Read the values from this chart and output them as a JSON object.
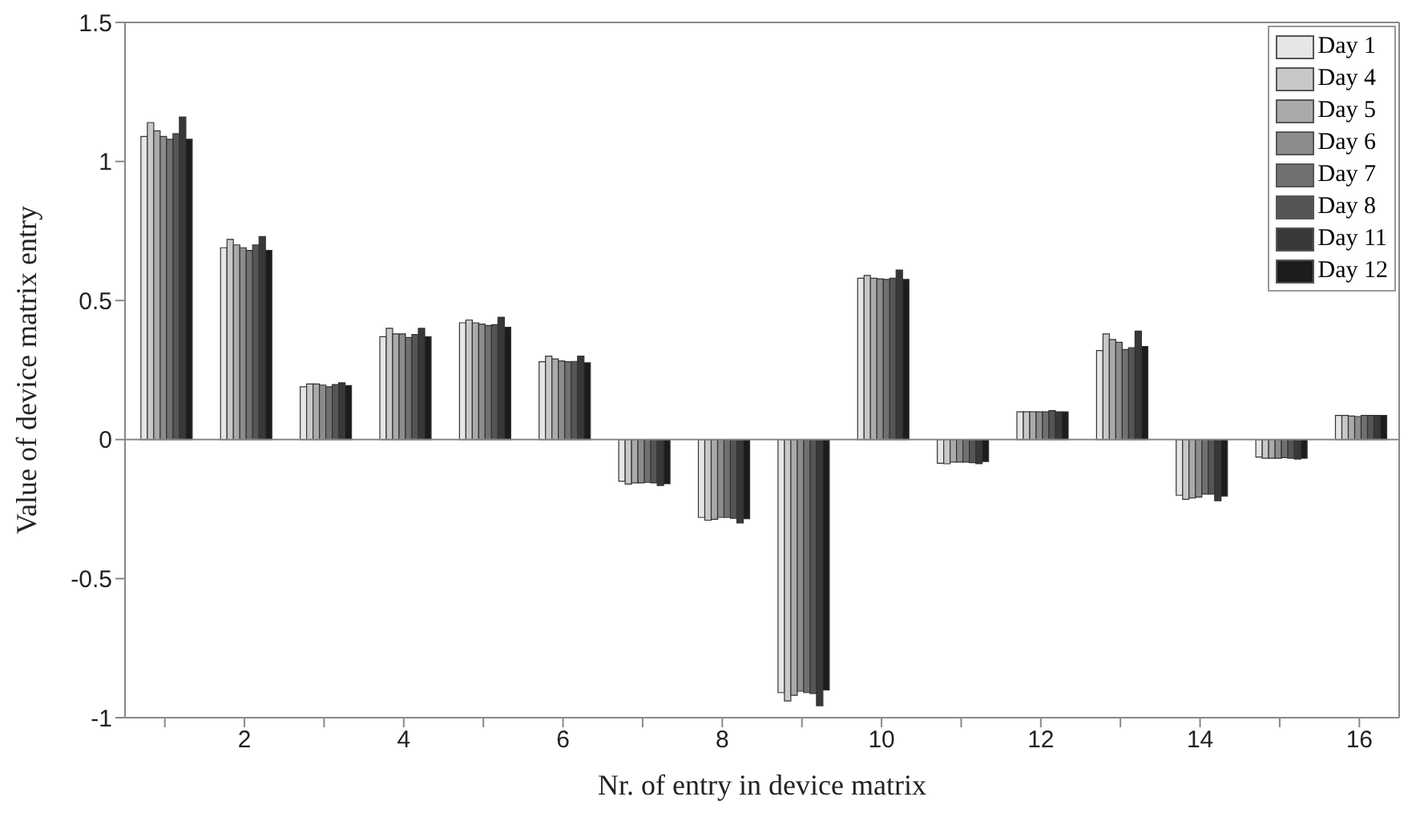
{
  "chart_data": {
    "type": "bar",
    "xlabel": "Nr. of entry in device matrix",
    "ylabel": "Value of device matrix entry",
    "categories": [
      null,
      "2",
      null,
      "4",
      null,
      "6",
      null,
      "8",
      null,
      "10",
      null,
      "12",
      null,
      "14",
      null,
      "16"
    ],
    "ylim": [
      -1,
      1.5
    ],
    "yticks": [
      -1,
      -0.5,
      0,
      0.5,
      1,
      1.5
    ],
    "legend": "top right",
    "ref_lines": [
      {
        "axis": "y",
        "value": 0,
        "color": "#888888"
      }
    ],
    "series": [
      {
        "name": "Day 1",
        "color": "#e6e6e6",
        "values": [
          1.09,
          0.69,
          0.19,
          0.37,
          0.42,
          0.28,
          -0.15,
          -0.28,
          -0.91,
          0.58,
          -0.085,
          0.1,
          0.32,
          -0.2,
          -0.063,
          0.087
        ]
      },
      {
        "name": "Day 4",
        "color": "#c8c8c8",
        "values": [
          1.14,
          0.72,
          0.2,
          0.4,
          0.43,
          0.3,
          -0.16,
          -0.29,
          -0.94,
          0.59,
          -0.087,
          0.1,
          0.38,
          -0.215,
          -0.067,
          0.087
        ]
      },
      {
        "name": "Day 5",
        "color": "#aaaaaa",
        "values": [
          1.11,
          0.7,
          0.2,
          0.38,
          0.42,
          0.29,
          -0.156,
          -0.287,
          -0.92,
          0.58,
          -0.081,
          0.1,
          0.36,
          -0.21,
          -0.067,
          0.085
        ]
      },
      {
        "name": "Day 6",
        "color": "#8c8c8c",
        "values": [
          1.09,
          0.69,
          0.196,
          0.38,
          0.415,
          0.283,
          -0.156,
          -0.28,
          -0.905,
          0.578,
          -0.081,
          0.1,
          0.35,
          -0.207,
          -0.067,
          0.083
        ]
      },
      {
        "name": "Day 7",
        "color": "#707070",
        "values": [
          1.08,
          0.68,
          0.19,
          0.367,
          0.41,
          0.28,
          -0.154,
          -0.28,
          -0.91,
          0.576,
          -0.081,
          0.1,
          0.324,
          -0.196,
          -0.065,
          0.087
        ]
      },
      {
        "name": "Day 8",
        "color": "#555555",
        "values": [
          1.1,
          0.7,
          0.198,
          0.378,
          0.413,
          0.281,
          -0.156,
          -0.283,
          -0.913,
          0.58,
          -0.083,
          0.104,
          0.33,
          -0.196,
          -0.067,
          0.087
        ]
      },
      {
        "name": "Day 11",
        "color": "#383838",
        "values": [
          1.16,
          0.73,
          0.204,
          0.4,
          0.44,
          0.3,
          -0.165,
          -0.3,
          -0.957,
          0.61,
          -0.087,
          0.1,
          0.39,
          -0.22,
          -0.07,
          0.087
        ]
      },
      {
        "name": "Day 12",
        "color": "#1c1c1c",
        "values": [
          1.08,
          0.68,
          0.194,
          0.37,
          0.404,
          0.276,
          -0.159,
          -0.285,
          -0.9,
          0.576,
          -0.079,
          0.1,
          0.335,
          -0.203,
          -0.067,
          0.087
        ]
      }
    ]
  }
}
